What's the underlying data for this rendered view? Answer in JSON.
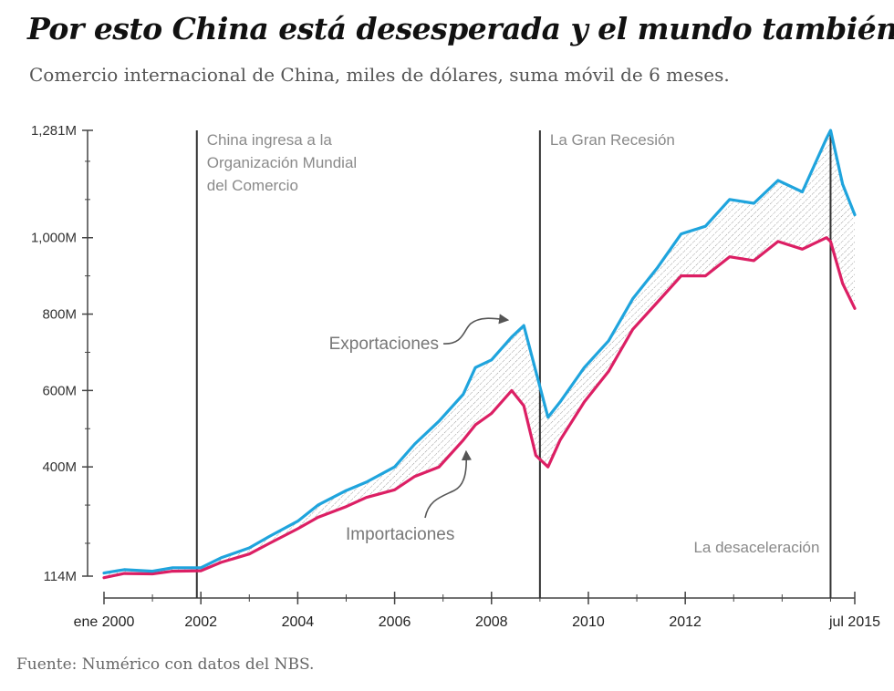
{
  "title": "Por esto China está desesperada y el mundo también",
  "subtitle": "Comercio internacional de China, miles de dólares, suma móvil de 6 meses.",
  "source": "Fuente: Numérico con datos del NBS.",
  "colors": {
    "exports": "#1fa4dd",
    "imports": "#dc1f64",
    "annotation": "#555555",
    "axis": "#444444"
  },
  "chart_data": {
    "type": "line",
    "x_start": "2000-01",
    "x_end": "2015-07",
    "x_tick_labels": [
      {
        "date": "2000-01",
        "label": "ene 2000"
      },
      {
        "date": "2002-01",
        "label": "2002"
      },
      {
        "date": "2004-01",
        "label": "2004"
      },
      {
        "date": "2006-01",
        "label": "2006"
      },
      {
        "date": "2008-01",
        "label": "2008"
      },
      {
        "date": "2010-01",
        "label": "2010"
      },
      {
        "date": "2012-01",
        "label": "2012"
      },
      {
        "date": "2015-07",
        "label": "jul 2015"
      }
    ],
    "y_ticks": [
      {
        "value": 114,
        "label": "114M"
      },
      {
        "value": 400,
        "label": "400M"
      },
      {
        "value": 600,
        "label": "600M"
      },
      {
        "value": 800,
        "label": "800M"
      },
      {
        "value": 1000,
        "label": "1,000M"
      },
      {
        "value": 1281,
        "label": "1,281M"
      }
    ],
    "ylim": [
      114,
      1281
    ],
    "grid": false,
    "series": [
      {
        "name": "Exportaciones",
        "color": "#1fa4dd",
        "points": [
          [
            "2000-01",
            122
          ],
          [
            "2000-06",
            131
          ],
          [
            "2001-01",
            127
          ],
          [
            "2001-06",
            136
          ],
          [
            "2002-01",
            136
          ],
          [
            "2002-06",
            162
          ],
          [
            "2003-01",
            188
          ],
          [
            "2003-06",
            218
          ],
          [
            "2004-01",
            258
          ],
          [
            "2004-06",
            300
          ],
          [
            "2005-01",
            338
          ],
          [
            "2005-06",
            360
          ],
          [
            "2006-01",
            400
          ],
          [
            "2006-06",
            460
          ],
          [
            "2006-12",
            520
          ],
          [
            "2007-06",
            590
          ],
          [
            "2007-09",
            660
          ],
          [
            "2008-01",
            680
          ],
          [
            "2008-06",
            740
          ],
          [
            "2008-09",
            770
          ],
          [
            "2008-12",
            650
          ],
          [
            "2009-03",
            530
          ],
          [
            "2009-06",
            570
          ],
          [
            "2009-12",
            660
          ],
          [
            "2010-06",
            730
          ],
          [
            "2010-12",
            840
          ],
          [
            "2011-06",
            920
          ],
          [
            "2011-12",
            1010
          ],
          [
            "2012-06",
            1030
          ],
          [
            "2012-12",
            1100
          ],
          [
            "2013-06",
            1090
          ],
          [
            "2013-12",
            1150
          ],
          [
            "2014-06",
            1120
          ],
          [
            "2014-12",
            1260
          ],
          [
            "2015-01",
            1281
          ],
          [
            "2015-04",
            1140
          ],
          [
            "2015-07",
            1060
          ]
        ]
      },
      {
        "name": "Importaciones",
        "color": "#dc1f64",
        "points": [
          [
            "2000-01",
            110
          ],
          [
            "2000-06",
            121
          ],
          [
            "2001-01",
            120
          ],
          [
            "2001-06",
            127
          ],
          [
            "2002-01",
            128
          ],
          [
            "2002-06",
            150
          ],
          [
            "2003-01",
            172
          ],
          [
            "2003-06",
            200
          ],
          [
            "2004-01",
            238
          ],
          [
            "2004-06",
            268
          ],
          [
            "2005-01",
            296
          ],
          [
            "2005-06",
            320
          ],
          [
            "2006-01",
            340
          ],
          [
            "2006-06",
            375
          ],
          [
            "2006-12",
            400
          ],
          [
            "2007-06",
            470
          ],
          [
            "2007-09",
            510
          ],
          [
            "2008-01",
            540
          ],
          [
            "2008-06",
            600
          ],
          [
            "2008-09",
            560
          ],
          [
            "2008-12",
            430
          ],
          [
            "2009-03",
            400
          ],
          [
            "2009-06",
            470
          ],
          [
            "2009-12",
            570
          ],
          [
            "2010-06",
            650
          ],
          [
            "2010-12",
            760
          ],
          [
            "2011-06",
            830
          ],
          [
            "2011-12",
            900
          ],
          [
            "2012-06",
            900
          ],
          [
            "2012-12",
            950
          ],
          [
            "2013-06",
            940
          ],
          [
            "2013-12",
            990
          ],
          [
            "2014-06",
            970
          ],
          [
            "2014-12",
            1000
          ],
          [
            "2015-01",
            990
          ],
          [
            "2015-04",
            880
          ],
          [
            "2015-07",
            815
          ]
        ]
      }
    ],
    "events": [
      {
        "date": "2001-12",
        "label": [
          "China ingresa a la",
          "Organización Mundial",
          "del Comercio"
        ],
        "label_pos": "top-right"
      },
      {
        "date": "2009-01",
        "label": [
          "La Gran Recesión"
        ],
        "label_pos": "top-right"
      },
      {
        "date": "2015-01",
        "label": [
          "La desaceleración"
        ],
        "label_pos": "bottom-left"
      }
    ],
    "annotations": [
      {
        "text": "Exportaciones",
        "series": "Exportaciones"
      },
      {
        "text": "Importaciones",
        "series": "Importaciones"
      }
    ]
  }
}
